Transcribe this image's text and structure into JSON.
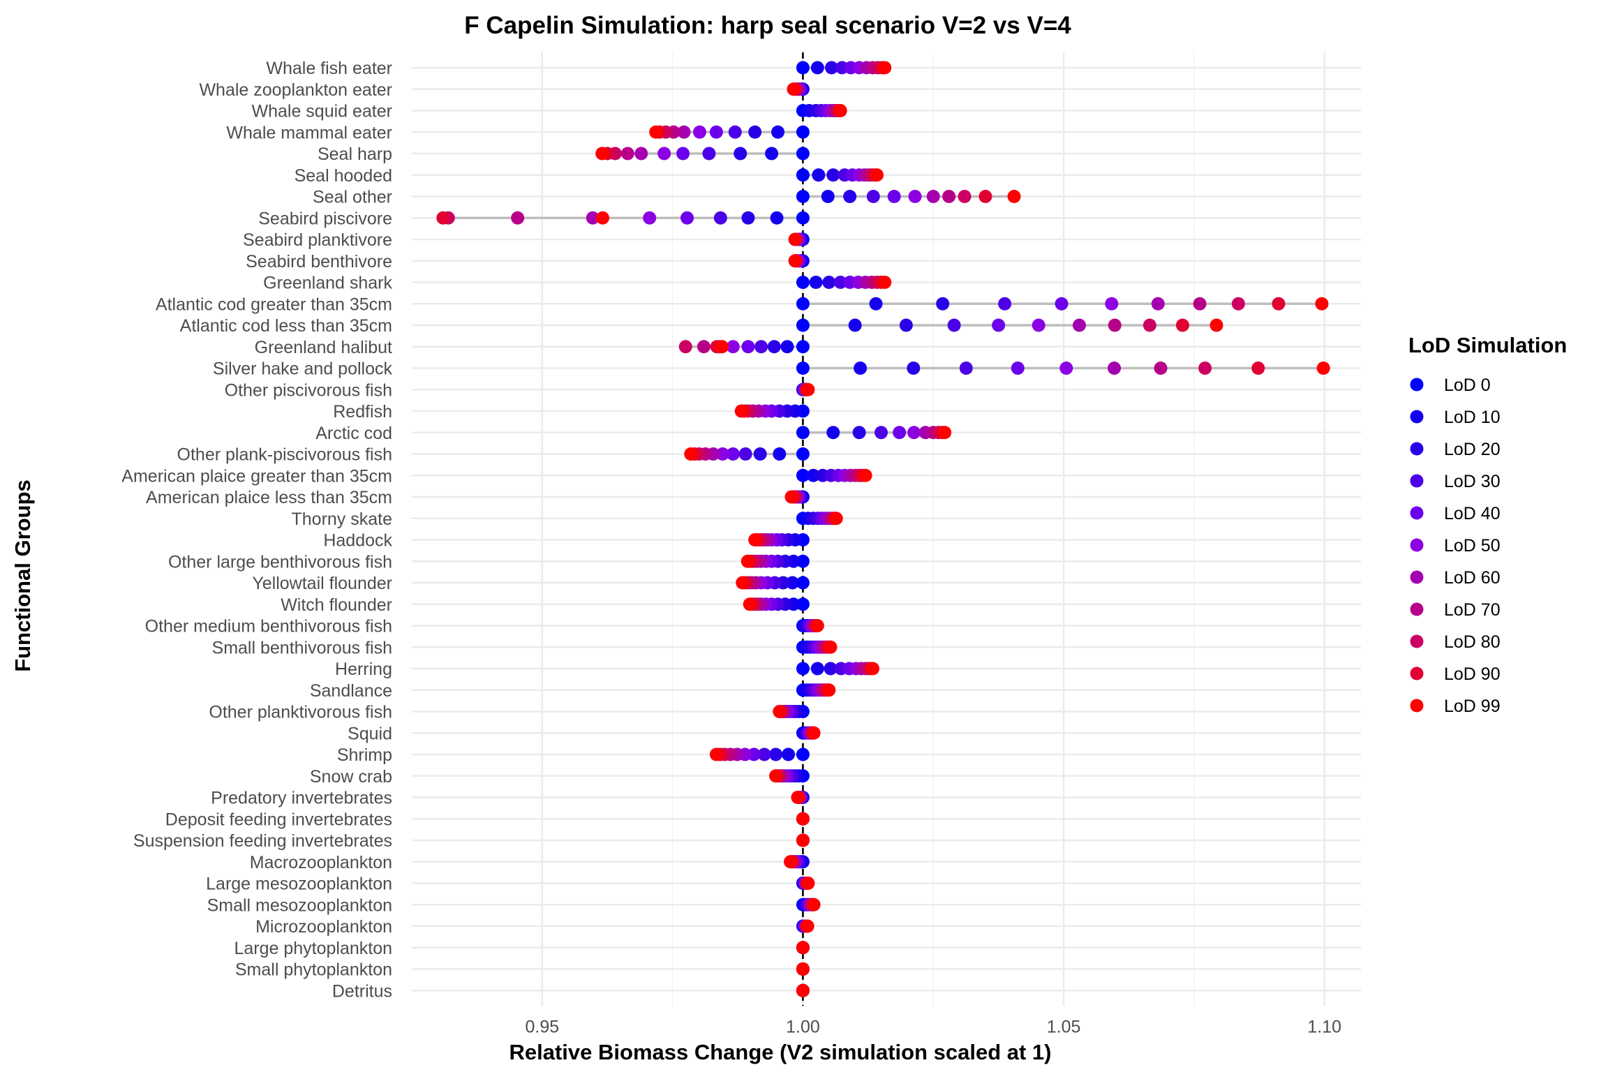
{
  "chart_data": {
    "type": "scatter",
    "title": "F Capelin Simulation: harp seal scenario V=2 vs V=4",
    "xlabel": "Relative Biomass Change (V2 simulation scaled at 1)",
    "ylabel": "Functional Groups",
    "xlim": [
      0.925,
      1.107
    ],
    "x_ticks": [
      0.95,
      1.0,
      1.05,
      1.1
    ],
    "x_tick_labels": [
      "0.95",
      "1.00",
      "1.05",
      "1.10"
    ],
    "reference_line": 1.0,
    "grid": true,
    "legend": {
      "title": "LoD Simulation",
      "position": "right",
      "entries": [
        "LoD 0",
        "LoD 10",
        "LoD 20",
        "LoD 30",
        "LoD 40",
        "LoD 50",
        "LoD 60",
        "LoD 70",
        "LoD 80",
        "LoD 90",
        "LoD 99"
      ],
      "colors": [
        "#0000ff",
        "#1400ef",
        "#2a00e8",
        "#4b00e8",
        "#6d00ec",
        "#8d00e3",
        "#a400b0",
        "#b7008a",
        "#cc0062",
        "#e00032",
        "#ff0000"
      ]
    },
    "categories": [
      "Whale fish eater",
      "Whale zooplankton eater",
      "Whale squid eater",
      "Whale mammal eater",
      "Seal harp",
      "Seal hooded",
      "Seal other",
      "Seabird piscivore",
      "Seabird planktivore",
      "Seabird benthivore",
      "Greenland shark",
      "Atlantic cod greater than 35cm",
      "Atlantic cod less than 35cm",
      "Greenland halibut",
      "Silver hake and pollock",
      "Other piscivorous fish",
      "Redfish",
      "Arctic cod",
      "Other plank-piscivorous fish",
      "American plaice greater than 35cm",
      "American plaice less than 35cm",
      "Thorny skate",
      "Haddock",
      "Other large benthivorous fish",
      "Yellowtail flounder",
      "Witch flounder",
      "Other medium benthivorous fish",
      "Small benthivorous fish",
      "Herring",
      "Sandlance",
      "Other planktivorous fish",
      "Squid",
      "Shrimp",
      "Snow crab",
      "Predatory invertebrates",
      "Deposit feeding invertebrates",
      "Suspension feeding invertebrates",
      "Macrozooplankton",
      "Large mesozooplankton",
      "Small mesozooplankton",
      "Microzooplankton",
      "Large phytoplankton",
      "Small phytoplankton",
      "Detritus"
    ],
    "lod_levels": [
      0,
      10,
      20,
      30,
      40,
      50,
      60,
      70,
      80,
      90,
      99
    ],
    "values": [
      [
        1.0,
        1.0028,
        1.0055,
        1.0075,
        1.0092,
        1.0108,
        1.0122,
        1.0134,
        1.0144,
        1.0152,
        1.0157
      ],
      [
        1.0,
        0.9999,
        0.9998,
        0.9996,
        0.9994,
        0.9992,
        0.999,
        0.9988,
        0.9986,
        0.9984,
        0.9982
      ],
      [
        1.0,
        1.0012,
        1.0025,
        1.0035,
        1.0044,
        1.0052,
        1.0058,
        1.0063,
        1.0067,
        1.007,
        1.0072
      ],
      [
        1.0,
        0.9952,
        0.9908,
        0.987,
        0.9834,
        0.9802,
        0.9772,
        0.9752,
        0.9737,
        0.9725,
        0.9718
      ],
      [
        1.0,
        0.994,
        0.988,
        0.982,
        0.977,
        0.9734,
        0.969,
        0.9664,
        0.964,
        0.9625,
        0.9615
      ],
      [
        1.0,
        1.003,
        1.0058,
        1.008,
        1.0095,
        1.0108,
        1.0118,
        1.0126,
        1.0132,
        1.0138,
        1.0142
      ],
      [
        1.0,
        1.0048,
        1.009,
        1.0135,
        1.0175,
        1.0215,
        1.025,
        1.028,
        1.031,
        1.035,
        1.0405
      ],
      [
        1.0,
        0.995,
        0.9895,
        0.9842,
        0.9778,
        0.9706,
        0.9597,
        0.9453,
        0.932,
        0.931,
        0.9616
      ],
      [
        1.0,
        0.9998,
        0.9996,
        0.9994,
        0.9992,
        0.999,
        0.9988,
        0.9987,
        0.9986,
        0.9985,
        0.9985
      ],
      [
        1.0,
        0.9998,
        0.9996,
        0.9994,
        0.9992,
        0.999,
        0.9988,
        0.9987,
        0.9986,
        0.9985,
        0.9985
      ],
      [
        1.0,
        1.0025,
        1.005,
        1.0072,
        1.009,
        1.0106,
        1.012,
        1.0132,
        1.0142,
        1.015,
        1.0157
      ],
      [
        1.0,
        1.014,
        1.0268,
        1.0387,
        1.0496,
        1.0592,
        1.0681,
        1.0761,
        1.0835,
        1.0912,
        1.0995
      ],
      [
        1.0,
        1.01,
        1.0198,
        1.029,
        1.0375,
        1.0452,
        1.053,
        1.0598,
        1.0665,
        1.0728,
        1.0793
      ],
      [
        1.0,
        0.997,
        0.9945,
        0.992,
        0.9895,
        0.9866,
        0.984,
        0.981,
        0.9775,
        0.9835,
        0.9845
      ],
      [
        1.0,
        1.011,
        1.0212,
        1.0313,
        1.0412,
        1.0505,
        1.0597,
        1.0686,
        1.0771,
        1.0873,
        1.0998
      ],
      [
        1.0,
        1.0,
        1.0001,
        1.0002,
        1.0003,
        1.0004,
        1.0005,
        1.0006,
        1.0007,
        1.0008,
        1.001
      ],
      [
        1.0,
        0.9985,
        0.997,
        0.9955,
        0.994,
        0.9928,
        0.9915,
        0.9904,
        0.9895,
        0.9888,
        0.9882
      ],
      [
        1.0,
        1.0058,
        1.0108,
        1.015,
        1.0185,
        1.0213,
        1.0235,
        1.025,
        1.026,
        1.0267,
        1.0272
      ],
      [
        1.0,
        0.9955,
        0.9918,
        0.989,
        0.9866,
        0.9846,
        0.9828,
        0.9813,
        0.9801,
        0.9792,
        0.9785
      ],
      [
        1.0,
        1.002,
        1.0038,
        1.0054,
        1.0068,
        1.008,
        1.0091,
        1.01,
        1.0108,
        1.0114,
        1.012
      ],
      [
        1.0,
        0.9998,
        0.9996,
        0.9994,
        0.9992,
        0.999,
        0.9988,
        0.9986,
        0.9984,
        0.9982,
        0.9978
      ],
      [
        1.0,
        1.001,
        1.002,
        1.0029,
        1.0037,
        1.0044,
        1.005,
        1.0055,
        1.0059,
        1.0062,
        1.0064
      ],
      [
        1.0,
        0.9985,
        0.9972,
        0.996,
        0.995,
        0.994,
        0.9932,
        0.9925,
        0.9919,
        0.9913,
        0.9908
      ],
      [
        1.0,
        0.9982,
        0.9966,
        0.9952,
        0.994,
        0.9929,
        0.992,
        0.9912,
        0.9905,
        0.9899,
        0.9894
      ],
      [
        1.0,
        0.998,
        0.9962,
        0.9946,
        0.9932,
        0.992,
        0.991,
        0.9902,
        0.9895,
        0.9889,
        0.9884
      ],
      [
        1.0,
        0.9982,
        0.9966,
        0.9952,
        0.994,
        0.9929,
        0.992,
        0.9913,
        0.9907,
        0.9902,
        0.9898
      ],
      [
        1.0,
        1.0004,
        1.0008,
        1.0012,
        1.0015,
        1.0018,
        1.0021,
        1.0023,
        1.0025,
        1.0027,
        1.0028
      ],
      [
        1.0,
        1.0007,
        1.0014,
        1.0021,
        1.0027,
        1.0033,
        1.0038,
        1.0043,
        1.0047,
        1.005,
        1.0053
      ],
      [
        1.0,
        1.0028,
        1.0053,
        1.0073,
        1.0089,
        1.0102,
        1.0112,
        1.012,
        1.0126,
        1.0131,
        1.0134
      ],
      [
        1.0,
        1.0007,
        1.0014,
        1.002,
        1.0026,
        1.0031,
        1.0036,
        1.004,
        1.0044,
        1.0047,
        1.005
      ],
      [
        1.0,
        0.9993,
        0.9986,
        0.998,
        0.9974,
        0.9969,
        0.9965,
        0.9961,
        0.9958,
        0.9956,
        0.9955
      ],
      [
        1.0,
        1.0003,
        1.0006,
        1.0009,
        1.0012,
        1.0014,
        1.0016,
        1.0018,
        1.0019,
        1.002,
        1.0021
      ],
      [
        1.0,
        0.9972,
        0.9948,
        0.9926,
        0.9906,
        0.9889,
        0.9874,
        0.9861,
        0.985,
        0.9841,
        0.9834
      ],
      [
        1.0,
        0.9992,
        0.9985,
        0.9978,
        0.9972,
        0.9966,
        0.9961,
        0.9957,
        0.9953,
        0.995,
        0.9948
      ],
      [
        1.0,
        0.9999,
        0.9998,
        0.9997,
        0.9996,
        0.9995,
        0.9994,
        0.9993,
        0.9992,
        0.9991,
        0.999
      ],
      [
        1.0,
        1.0,
        1.0,
        1.0,
        1.0,
        1.0,
        1.0,
        1.0,
        1.0,
        1.0,
        1.0
      ],
      [
        1.0,
        1.0,
        1.0,
        1.0,
        1.0,
        1.0,
        1.0,
        1.0,
        1.0,
        1.0,
        1.0
      ],
      [
        1.0,
        0.9997,
        0.9994,
        0.9991,
        0.9988,
        0.9985,
        0.9983,
        0.9981,
        0.9979,
        0.9977,
        0.9976
      ],
      [
        1.0,
        1.0001,
        1.0002,
        1.0003,
        1.0004,
        1.0005,
        1.0006,
        1.0007,
        1.0008,
        1.0009,
        1.001
      ],
      [
        1.0,
        1.0003,
        1.0006,
        1.0009,
        1.0012,
        1.0014,
        1.0016,
        1.0018,
        1.0019,
        1.002,
        1.0021
      ],
      [
        1.0,
        1.0001,
        1.0002,
        1.0003,
        1.0004,
        1.0005,
        1.0006,
        1.0007,
        1.0008,
        1.0008,
        1.0009
      ],
      [
        1.0,
        1.0,
        1.0,
        1.0,
        1.0,
        1.0,
        1.0,
        1.0,
        1.0,
        1.0,
        1.0
      ],
      [
        1.0,
        1.0,
        1.0,
        1.0,
        1.0,
        1.0,
        1.0,
        1.0,
        1.0,
        1.0,
        1.0
      ],
      [
        1.0,
        1.0,
        1.0,
        1.0,
        1.0,
        1.0,
        1.0,
        1.0,
        1.0,
        1.0,
        1.0
      ]
    ]
  }
}
